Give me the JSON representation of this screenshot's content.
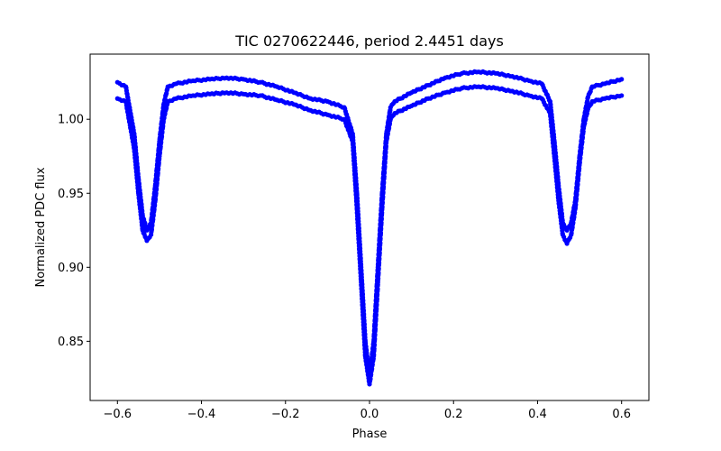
{
  "chart_data": {
    "type": "scatter",
    "title": "TIC 0270622446, period 2.4451 days",
    "xlabel": "Phase",
    "ylabel": "Normalized PDC flux",
    "xlim": [
      -0.665,
      0.665
    ],
    "ylim": [
      0.81,
      1.044
    ],
    "grid": false,
    "marker_color": "#0000ff",
    "x_ticks": [
      {
        "value": -0.6,
        "label": "−0.6"
      },
      {
        "value": -0.4,
        "label": "−0.4"
      },
      {
        "value": -0.2,
        "label": "−0.2"
      },
      {
        "value": 0.0,
        "label": "0.0"
      },
      {
        "value": 0.2,
        "label": "0.2"
      },
      {
        "value": 0.4,
        "label": "0.4"
      },
      {
        "value": 0.6,
        "label": "0.6"
      }
    ],
    "y_ticks": [
      {
        "value": 0.85,
        "label": "0.85"
      },
      {
        "value": 0.9,
        "label": "0.90"
      },
      {
        "value": 0.95,
        "label": "0.95"
      },
      {
        "value": 1.0,
        "label": "1.00"
      }
    ],
    "series": [
      {
        "name": "upper branch",
        "x": [
          -0.6,
          -0.58,
          -0.56,
          -0.55,
          -0.54,
          -0.53,
          -0.52,
          -0.51,
          -0.5,
          -0.49,
          -0.48,
          -0.46,
          -0.42,
          -0.38,
          -0.34,
          -0.3,
          -0.26,
          -0.22,
          -0.18,
          -0.14,
          -0.1,
          -0.06,
          -0.04,
          -0.03,
          -0.02,
          -0.01,
          0.0,
          0.01,
          0.02,
          0.03,
          0.04,
          0.05,
          0.06,
          0.1,
          0.14,
          0.18,
          0.22,
          0.26,
          0.3,
          0.34,
          0.38,
          0.41,
          0.43,
          0.44,
          0.45,
          0.46,
          0.47,
          0.48,
          0.49,
          0.5,
          0.51,
          0.52,
          0.53,
          0.56,
          0.6
        ],
        "y": [
          1.025,
          1.022,
          0.99,
          0.96,
          0.935,
          0.925,
          0.93,
          0.955,
          0.985,
          1.01,
          1.022,
          1.024,
          1.026,
          1.027,
          1.028,
          1.027,
          1.025,
          1.022,
          1.018,
          1.014,
          1.012,
          1.008,
          0.99,
          0.95,
          0.9,
          0.85,
          0.826,
          0.85,
          0.9,
          0.95,
          0.99,
          1.008,
          1.012,
          1.018,
          1.023,
          1.028,
          1.031,
          1.032,
          1.031,
          1.029,
          1.026,
          1.024,
          1.012,
          0.985,
          0.955,
          0.93,
          0.925,
          0.93,
          0.945,
          0.975,
          1.0,
          1.015,
          1.022,
          1.024,
          1.027
        ]
      },
      {
        "name": "lower branch",
        "x": [
          -0.6,
          -0.58,
          -0.56,
          -0.55,
          -0.54,
          -0.53,
          -0.52,
          -0.51,
          -0.5,
          -0.49,
          -0.48,
          -0.46,
          -0.42,
          -0.38,
          -0.34,
          -0.3,
          -0.26,
          -0.22,
          -0.18,
          -0.14,
          -0.1,
          -0.06,
          -0.04,
          -0.03,
          -0.02,
          -0.01,
          0.0,
          0.01,
          0.02,
          0.03,
          0.04,
          0.05,
          0.06,
          0.1,
          0.14,
          0.18,
          0.22,
          0.26,
          0.3,
          0.34,
          0.38,
          0.41,
          0.43,
          0.44,
          0.45,
          0.46,
          0.47,
          0.48,
          0.49,
          0.5,
          0.51,
          0.52,
          0.53,
          0.56,
          0.6
        ],
        "y": [
          1.014,
          1.012,
          0.98,
          0.95,
          0.925,
          0.918,
          0.922,
          0.945,
          0.975,
          1.0,
          1.012,
          1.014,
          1.016,
          1.017,
          1.018,
          1.017,
          1.016,
          1.013,
          1.01,
          1.006,
          1.003,
          1.0,
          0.985,
          0.94,
          0.89,
          0.84,
          0.821,
          0.84,
          0.89,
          0.94,
          0.985,
          1.0,
          1.004,
          1.009,
          1.014,
          1.018,
          1.021,
          1.022,
          1.021,
          1.019,
          1.016,
          1.014,
          1.004,
          0.975,
          0.945,
          0.922,
          0.916,
          0.922,
          0.94,
          0.97,
          0.995,
          1.007,
          1.012,
          1.014,
          1.016
        ]
      }
    ]
  }
}
